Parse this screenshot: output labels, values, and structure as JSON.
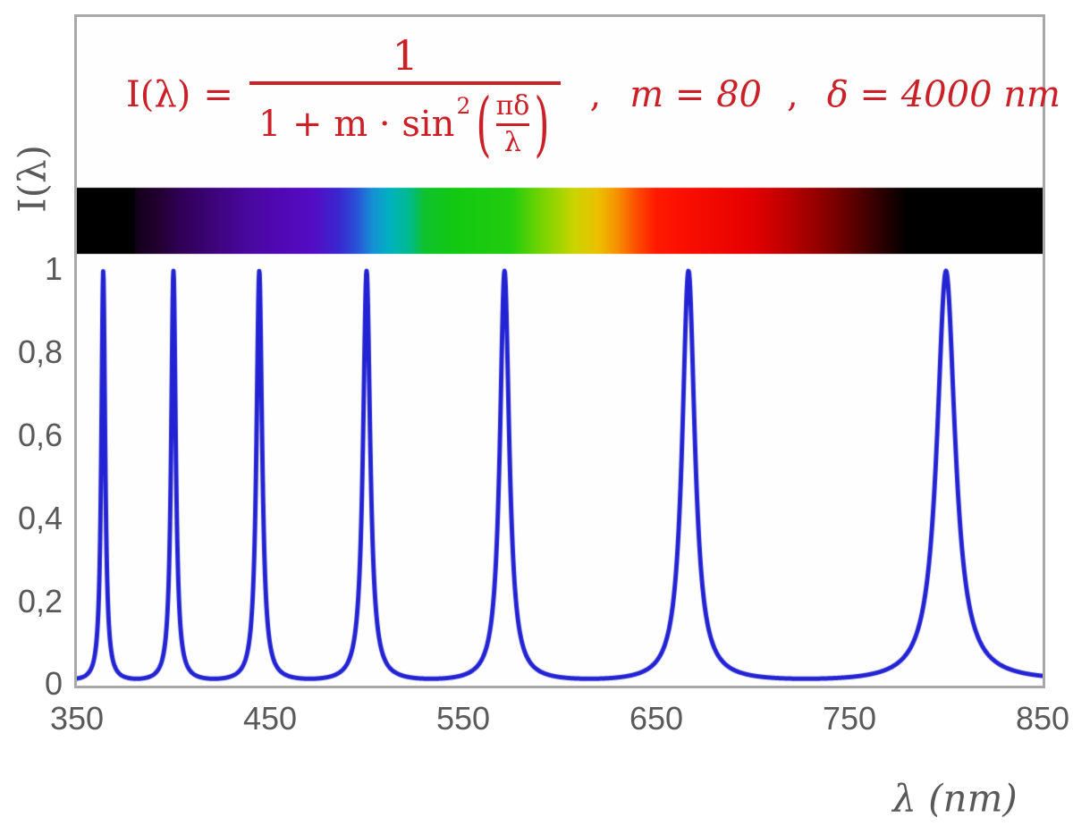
{
  "figure": {
    "background": "#ffffff",
    "frame_border_color": "#a8a8a8",
    "plot_background": "#fefefe",
    "text_color": "#595959"
  },
  "formula": {
    "color": "#ca2128",
    "lhs": "I(λ)",
    "equals": "=",
    "numerator": "1",
    "denom_prefix": "1 + m · sin",
    "denom_sup": "2",
    "open_paren": "(",
    "inner_numerator": "πδ",
    "inner_denominator": "λ",
    "close_paren": ")",
    "comma1": ",",
    "param_m": "m = 80",
    "comma2": ",",
    "param_delta": "δ = 4000 nm"
  },
  "axes": {
    "y_title": "I(λ)",
    "x_title": "λ  (nm)",
    "y_ticks": [
      "1",
      "0,8",
      "0,6",
      "0,4",
      "0,2",
      "0"
    ],
    "x_ticks": [
      "350",
      "450",
      "550",
      "650",
      "750",
      "850"
    ],
    "label_color": "#595959"
  },
  "chart_data": {
    "type": "line",
    "title": "Fabry–Perot / Airy transmission function with visible-spectrum band",
    "formula_text": "I(λ) = 1 / (1 + m·sin²(πδ/λ)) ,  m = 80 ,  δ = 4000 nm",
    "params": {
      "m": 80,
      "delta_nm": 4000
    },
    "xlabel": "λ (nm)",
    "ylabel": "I(λ)",
    "xlim": [
      350,
      850
    ],
    "ylim": [
      0,
      1
    ],
    "x_ticks": [
      350,
      450,
      550,
      650,
      750,
      850
    ],
    "y_ticks": [
      0,
      0.2,
      0.4,
      0.6,
      0.8,
      1
    ],
    "grid": false,
    "legend": "none",
    "line_color": "#2323d3",
    "line_width": 5,
    "sample_step_nm": 0.2,
    "peaks_nm": [
      363.6,
      400,
      444.4,
      500,
      571.4,
      666.7,
      800
    ],
    "peak_value": 1,
    "between_peak_min_value": 0.0123,
    "spectrum_bar": {
      "visible_range_nm": [
        380,
        780
      ],
      "outside_color": "#000000",
      "gradient_stops_nm": [
        [
          380,
          "#120018"
        ],
        [
          392,
          "#22002e"
        ],
        [
          405,
          "#32005a"
        ],
        [
          420,
          "#3c0478"
        ],
        [
          438,
          "#48089e"
        ],
        [
          455,
          "#5008b4"
        ],
        [
          472,
          "#540cc4"
        ],
        [
          486,
          "#3a28d0"
        ],
        [
          495,
          "#2a52d8"
        ],
        [
          503,
          "#1690d4"
        ],
        [
          512,
          "#00b2c0"
        ],
        [
          522,
          "#00ba8e"
        ],
        [
          530,
          "#0ec22e"
        ],
        [
          545,
          "#12c812"
        ],
        [
          575,
          "#22cc0e"
        ],
        [
          592,
          "#7cd400"
        ],
        [
          608,
          "#ccd400"
        ],
        [
          620,
          "#ecc000"
        ],
        [
          630,
          "#f69000"
        ],
        [
          640,
          "#fc4c00"
        ],
        [
          650,
          "#ff1a00"
        ],
        [
          665,
          "#fa0e00"
        ],
        [
          700,
          "#e40000"
        ],
        [
          718,
          "#bc0000"
        ],
        [
          736,
          "#8e0000"
        ],
        [
          752,
          "#5c0000"
        ],
        [
          766,
          "#2c0000"
        ],
        [
          776,
          "#0e0000"
        ],
        [
          780,
          "#000000"
        ]
      ]
    }
  }
}
